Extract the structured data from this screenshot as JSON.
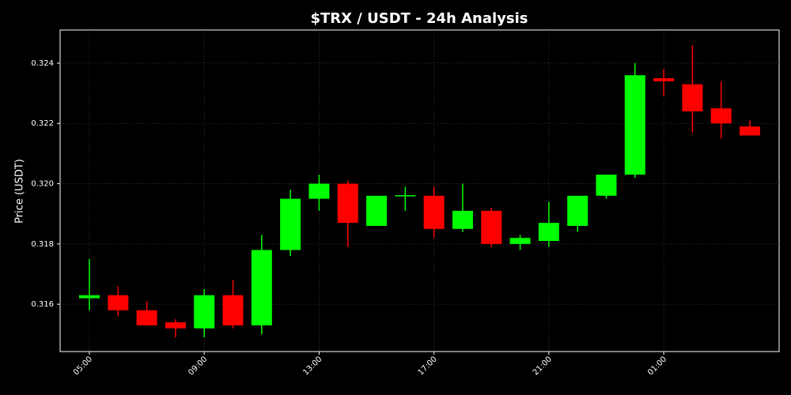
{
  "chart_data": {
    "type": "candlestick",
    "title": "$TRX / USDT - 24h Analysis",
    "y_label": "Price (USDT)",
    "categories": [
      "05:00",
      null,
      null,
      null,
      "09:00",
      null,
      null,
      null,
      "13:00",
      null,
      null,
      null,
      "17:00",
      null,
      null,
      null,
      "21:00",
      null,
      null,
      null,
      "01:00",
      null,
      null,
      null
    ],
    "open": [
      0.3162,
      0.3163,
      0.3158,
      0.3154,
      0.3152,
      0.3163,
      0.3153,
      0.3178,
      0.3195,
      0.32,
      0.3186,
      0.31958,
      0.3196,
      0.3185,
      0.3191,
      0.318,
      0.3181,
      0.3186,
      0.3196,
      0.3203,
      0.3235,
      0.3233,
      0.3225,
      0.3219
    ],
    "high": [
      0.3175,
      0.3166,
      0.3161,
      0.3155,
      0.3165,
      0.3168,
      0.3183,
      0.3198,
      0.3203,
      0.3201,
      0.3196,
      0.3199,
      0.3199,
      0.32,
      0.3192,
      0.3183,
      0.3194,
      0.3196,
      0.3203,
      0.324,
      0.3238,
      0.3246,
      0.3234,
      0.3221
    ],
    "low": [
      0.3158,
      0.3156,
      0.3153,
      0.3149,
      0.3149,
      0.3152,
      0.315,
      0.3176,
      0.3191,
      0.3179,
      0.3186,
      0.3191,
      0.3182,
      0.3184,
      0.3179,
      0.3178,
      0.3179,
      0.3184,
      0.3195,
      0.3202,
      0.3229,
      0.3217,
      0.3215,
      0.3216
    ],
    "close": [
      0.3163,
      0.3158,
      0.3153,
      0.3152,
      0.3163,
      0.3153,
      0.3178,
      0.3195,
      0.32,
      0.3187,
      0.3196,
      0.31962,
      0.3185,
      0.3191,
      0.318,
      0.3182,
      0.3187,
      0.3196,
      0.3203,
      0.3236,
      0.3234,
      0.3224,
      0.322,
      0.3216
    ],
    "up_color": "#00ff00",
    "down_color": "#ff0000",
    "ylim": [
      0.31443,
      0.3251
    ],
    "yticks": [
      0.316,
      0.318,
      {
        "value": 0.32,
        "label": "0.320"
      },
      0.322,
      0.324
    ],
    "grid": true
  }
}
